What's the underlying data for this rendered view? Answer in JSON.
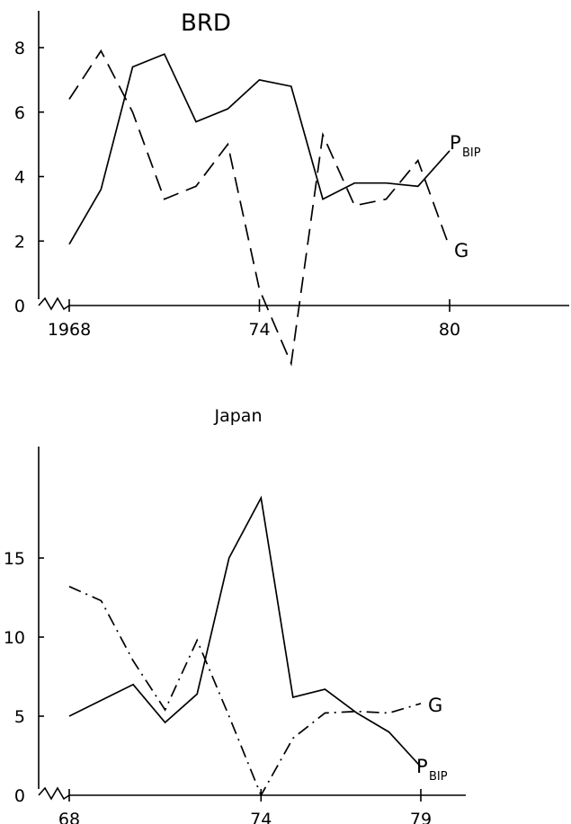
{
  "chart_data": [
    {
      "type": "line",
      "title": "BRD",
      "x_ticks": [
        "1968",
        "74",
        "80"
      ],
      "y_ticks": [
        "0",
        "2",
        "4",
        "6",
        "8"
      ],
      "xlim": [
        1967.8,
        1982.5
      ],
      "ylim": [
        -2,
        9
      ],
      "series": [
        {
          "name": "P_BIP",
          "label_main": "P",
          "label_sub": "BIP",
          "style": "solid",
          "x": [
            1968,
            1969,
            1970,
            1971,
            1972,
            1973,
            1974,
            1975,
            1976,
            1977,
            1978,
            1979,
            1980
          ],
          "y": [
            1.9,
            3.6,
            7.4,
            7.8,
            5.7,
            6.1,
            7.0,
            6.8,
            3.3,
            3.8,
            3.8,
            3.7,
            4.8
          ]
        },
        {
          "name": "G",
          "label_main": "G",
          "style": "dashed",
          "x": [
            1968,
            1969,
            1970,
            1971,
            1972,
            1973,
            1974,
            1975,
            1976,
            1977,
            1978,
            1979,
            1980
          ],
          "y": [
            6.4,
            7.9,
            6.0,
            3.3,
            3.7,
            5.0,
            0.5,
            -1.8,
            5.3,
            3.1,
            3.3,
            4.5,
            1.8
          ]
        }
      ]
    },
    {
      "type": "line",
      "title": "Japan",
      "x_ticks": [
        "68",
        "74",
        "79"
      ],
      "y_ticks": [
        "0",
        "5",
        "10",
        "15"
      ],
      "xlim": [
        67.8,
        80.5
      ],
      "ylim": [
        0,
        21
      ],
      "series": [
        {
          "name": "P_BIP",
          "label_main": "P",
          "label_sub": "BIP",
          "style": "solid",
          "x": [
            68,
            69,
            70,
            71,
            72,
            73,
            74,
            75,
            76,
            77,
            78,
            79
          ],
          "y": [
            5.0,
            6.0,
            7.0,
            4.6,
            6.4,
            15.0,
            18.8,
            6.2,
            6.7,
            5.2,
            4.0,
            1.8
          ]
        },
        {
          "name": "G",
          "label_main": "G",
          "style": "dashdot",
          "x": [
            68,
            69,
            70,
            71,
            72,
            73,
            74,
            75,
            76,
            77,
            78,
            79
          ],
          "y": [
            13.2,
            12.3,
            8.5,
            5.4,
            9.8,
            5.0,
            0.0,
            3.6,
            5.2,
            5.3,
            5.2,
            5.8
          ]
        }
      ]
    }
  ]
}
